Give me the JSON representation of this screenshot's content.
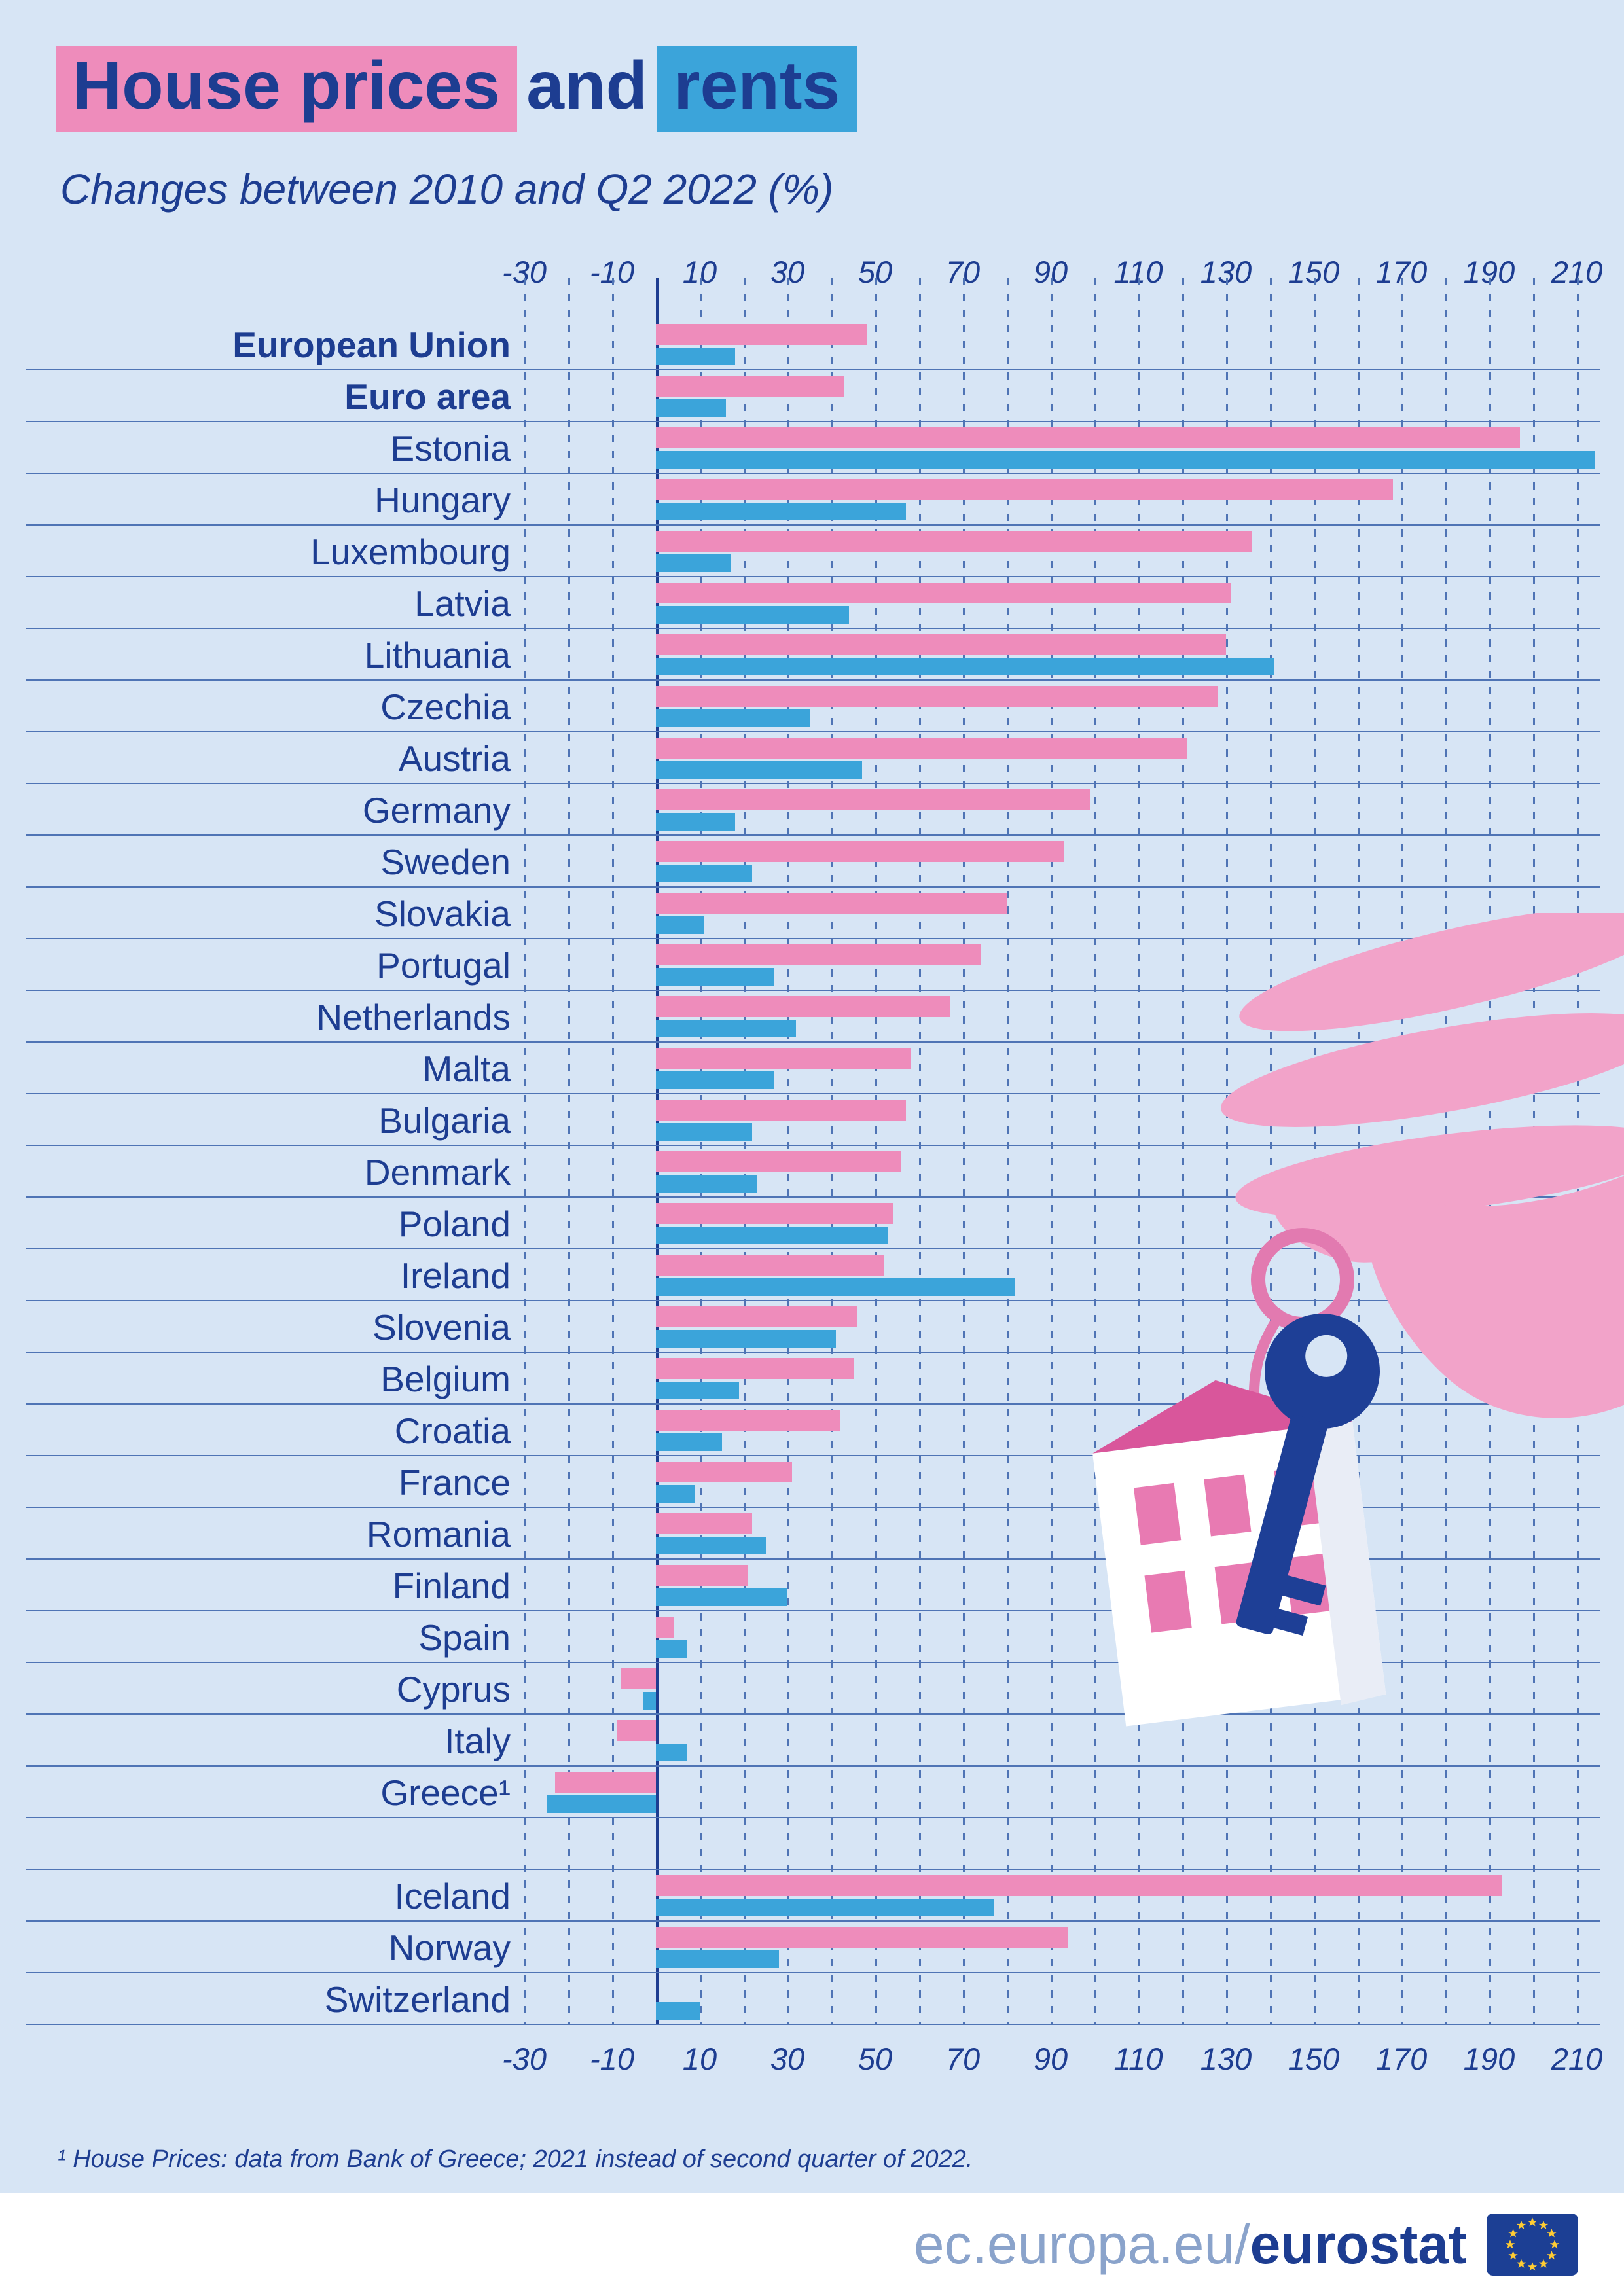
{
  "title": {
    "house_prices": "House prices",
    "and": "and",
    "rents": "rents"
  },
  "subtitle": "Changes between 2010 and Q2 2022 (%)",
  "footnote": "¹ House Prices: data from Bank of Greece; 2021 instead of second quarter of 2022.",
  "footer": {
    "url_prefix": "ec.europa.eu/",
    "url_bold": "eurostat",
    "flag_icon": "eu-flag"
  },
  "colors": {
    "background": "#d7e5f5",
    "house_prices": "#ee8cbb",
    "rents": "#3ba4da",
    "text_dark": "#1d3d91",
    "grid": "#4f74b5",
    "footer_gray": "#8aa3cb"
  },
  "chart_data": {
    "type": "bar",
    "orientation": "horizontal",
    "title": "House prices and rents",
    "subtitle": "Changes between 2010 and Q2 2022 (%)",
    "unit": "%",
    "axis": {
      "min": -30,
      "max": 210,
      "tick_step": 20,
      "minor_step": 10,
      "tick_labels": [
        -30,
        -10,
        10,
        30,
        50,
        70,
        90,
        110,
        130,
        150,
        170,
        190,
        210
      ]
    },
    "series": [
      {
        "name": "House prices",
        "color": "#ee8cbb"
      },
      {
        "name": "Rents",
        "color": "#3ba4da"
      }
    ],
    "rows": [
      {
        "label": "European Union",
        "bold": true,
        "house_prices": 48,
        "rents": 18
      },
      {
        "label": "Euro area",
        "bold": true,
        "house_prices": 43,
        "rents": 16
      },
      {
        "label": "Estonia",
        "bold": false,
        "house_prices": 197,
        "rents": 214
      },
      {
        "label": "Hungary",
        "bold": false,
        "house_prices": 168,
        "rents": 57
      },
      {
        "label": "Luxembourg",
        "bold": false,
        "house_prices": 136,
        "rents": 17
      },
      {
        "label": "Latvia",
        "bold": false,
        "house_prices": 131,
        "rents": 44
      },
      {
        "label": "Lithuania",
        "bold": false,
        "house_prices": 130,
        "rents": 141
      },
      {
        "label": "Czechia",
        "bold": false,
        "house_prices": 128,
        "rents": 35
      },
      {
        "label": "Austria",
        "bold": false,
        "house_prices": 121,
        "rents": 47
      },
      {
        "label": "Germany",
        "bold": false,
        "house_prices": 99,
        "rents": 18
      },
      {
        "label": "Sweden",
        "bold": false,
        "house_prices": 93,
        "rents": 22
      },
      {
        "label": "Slovakia",
        "bold": false,
        "house_prices": 80,
        "rents": 11
      },
      {
        "label": "Portugal",
        "bold": false,
        "house_prices": 74,
        "rents": 27
      },
      {
        "label": "Netherlands",
        "bold": false,
        "house_prices": 67,
        "rents": 32
      },
      {
        "label": "Malta",
        "bold": false,
        "house_prices": 58,
        "rents": 27
      },
      {
        "label": "Bulgaria",
        "bold": false,
        "house_prices": 57,
        "rents": 22
      },
      {
        "label": "Denmark",
        "bold": false,
        "house_prices": 56,
        "rents": 23
      },
      {
        "label": "Poland",
        "bold": false,
        "house_prices": 54,
        "rents": 53
      },
      {
        "label": "Ireland",
        "bold": false,
        "house_prices": 52,
        "rents": 82
      },
      {
        "label": "Slovenia",
        "bold": false,
        "house_prices": 46,
        "rents": 41
      },
      {
        "label": "Belgium",
        "bold": false,
        "house_prices": 45,
        "rents": 19
      },
      {
        "label": "Croatia",
        "bold": false,
        "house_prices": 42,
        "rents": 15
      },
      {
        "label": "France",
        "bold": false,
        "house_prices": 31,
        "rents": 9
      },
      {
        "label": "Romania",
        "bold": false,
        "house_prices": 22,
        "rents": 25
      },
      {
        "label": "Finland",
        "bold": false,
        "house_prices": 21,
        "rents": 30
      },
      {
        "label": "Spain",
        "bold": false,
        "house_prices": 4,
        "rents": 7
      },
      {
        "label": "Cyprus",
        "bold": false,
        "house_prices": -8,
        "rents": -3
      },
      {
        "label": "Italy",
        "bold": false,
        "house_prices": -9,
        "rents": 7
      },
      {
        "label": "Greece¹",
        "bold": false,
        "house_prices": -23,
        "rents": -25
      }
    ],
    "rows_non_eu": [
      {
        "label": "Iceland",
        "bold": false,
        "house_prices": 193,
        "rents": 77
      },
      {
        "label": "Norway",
        "bold": false,
        "house_prices": 94,
        "rents": 28
      },
      {
        "label": "Switzerland",
        "bold": false,
        "house_prices": null,
        "rents": 10
      }
    ]
  }
}
